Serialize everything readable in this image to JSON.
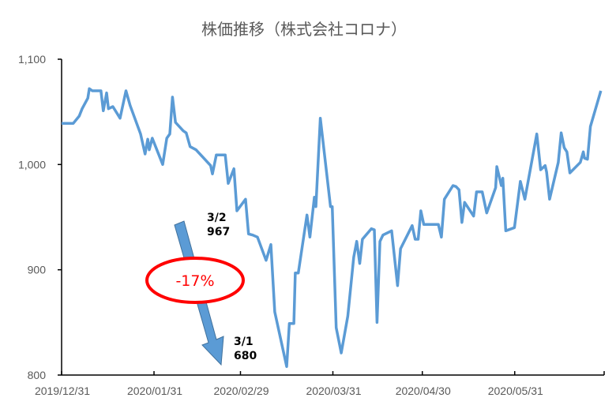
{
  "chart_data": {
    "type": "line",
    "title": "株価推移（株式会社コロナ）",
    "xlabel": "",
    "ylabel": "",
    "x_unit": "days since 2019/12/31",
    "xlim": [
      0,
      182
    ],
    "ylim": [
      800,
      1100
    ],
    "yticks": [
      800,
      900,
      1000,
      1100
    ],
    "ytick_labels": [
      "800",
      "900",
      "1,000",
      "1,100"
    ],
    "xticks": [
      0,
      31,
      60,
      91,
      121,
      152,
      182
    ],
    "xtick_labels": [
      "2019/12/31",
      "2020/01/31",
      "2020/02/29",
      "2020/03/31",
      "2020/04/30",
      "2020/05/31",
      ""
    ],
    "grid": false,
    "line_color": "#5b9bd5",
    "series": [
      {
        "name": "株価",
        "points": [
          [
            0,
            1039
          ],
          [
            3.9,
            1039
          ],
          [
            5.9,
            1046
          ],
          [
            6.9,
            1053
          ],
          [
            8.8,
            1063
          ],
          [
            9.3,
            1072
          ],
          [
            10.3,
            1070
          ],
          [
            13.2,
            1070
          ],
          [
            14,
            1051
          ],
          [
            15.1,
            1068
          ],
          [
            15.7,
            1053
          ],
          [
            17.2,
            1055
          ],
          [
            19.6,
            1044
          ],
          [
            21.6,
            1070
          ],
          [
            23,
            1056
          ],
          [
            26.5,
            1029
          ],
          [
            28,
            1010
          ],
          [
            28.9,
            1024
          ],
          [
            29.4,
            1014
          ],
          [
            30.4,
            1025
          ],
          [
            33.9,
            1000
          ],
          [
            35.3,
            1025
          ],
          [
            36.3,
            1029
          ],
          [
            37.2,
            1064
          ],
          [
            38.2,
            1040
          ],
          [
            40.8,
            1032
          ],
          [
            41.8,
            1030
          ],
          [
            43.1,
            1017
          ],
          [
            45.1,
            1014
          ],
          [
            49,
            1002
          ],
          [
            50,
            999
          ],
          [
            50.6,
            991
          ],
          [
            51.9,
            1009
          ],
          [
            54.9,
            1009
          ],
          [
            55.9,
            982
          ],
          [
            57.8,
            996
          ],
          [
            58.8,
            956
          ],
          [
            61.7,
            967
          ],
          [
            62.7,
            934
          ],
          [
            64.1,
            933
          ],
          [
            65.7,
            931
          ],
          [
            68.6,
            909
          ],
          [
            70.2,
            924
          ],
          [
            71.5,
            860
          ],
          [
            75.5,
            808
          ],
          [
            76.4,
            849
          ],
          [
            77.9,
            849
          ],
          [
            78.4,
            897
          ],
          [
            79.4,
            897
          ],
          [
            82.3,
            952
          ],
          [
            83.3,
            931
          ],
          [
            84.8,
            969
          ],
          [
            85.3,
            960
          ],
          [
            86.8,
            1044
          ],
          [
            90.2,
            960
          ],
          [
            90.8,
            960
          ],
          [
            92.1,
            845
          ],
          [
            93.8,
            821
          ],
          [
            96,
            856
          ],
          [
            98,
            912
          ],
          [
            99,
            927
          ],
          [
            100,
            906
          ],
          [
            100.9,
            929
          ],
          [
            103.9,
            939
          ],
          [
            104.9,
            938
          ],
          [
            105.8,
            850
          ],
          [
            106.8,
            927
          ],
          [
            107.8,
            933
          ],
          [
            110.7,
            937
          ],
          [
            112.7,
            885
          ],
          [
            113.7,
            920
          ],
          [
            117.6,
            942
          ],
          [
            118.6,
            929
          ],
          [
            119.6,
            929
          ],
          [
            120.5,
            956
          ],
          [
            121.5,
            943
          ],
          [
            126.4,
            943
          ],
          [
            127.4,
            931
          ],
          [
            128.4,
            967
          ],
          [
            131.3,
            980
          ],
          [
            132.3,
            979
          ],
          [
            133.3,
            976
          ],
          [
            134.3,
            945
          ],
          [
            135.2,
            964
          ],
          [
            138.2,
            951
          ],
          [
            139.2,
            974
          ],
          [
            141.1,
            974
          ],
          [
            142.6,
            954
          ],
          [
            145.6,
            978
          ],
          [
            146,
            998
          ],
          [
            147.5,
            980
          ],
          [
            148,
            987
          ],
          [
            149,
            937
          ],
          [
            151.9,
            940
          ],
          [
            153.9,
            984
          ],
          [
            155.4,
            967
          ],
          [
            159.4,
            1029
          ],
          [
            160.7,
            995
          ],
          [
            162.2,
            999
          ],
          [
            162.7,
            993
          ],
          [
            163.7,
            967
          ],
          [
            166.6,
            1002
          ],
          [
            167.6,
            1030
          ],
          [
            168.6,
            1016
          ],
          [
            169.5,
            1012
          ],
          [
            170.5,
            992
          ],
          [
            174,
            1002
          ],
          [
            175,
            1012
          ],
          [
            175.4,
            1006
          ],
          [
            176.4,
            1005
          ],
          [
            177.4,
            1036
          ],
          [
            180.9,
            1070
          ]
        ]
      }
    ],
    "annotations": {
      "start_label_date": "3/2",
      "start_label_value": "967",
      "end_label_date": "3/1",
      "end_label_value": "680",
      "change_label": "-17%",
      "arrow_color": "#5b9bd5",
      "ellipse_color": "#ff0000"
    }
  }
}
